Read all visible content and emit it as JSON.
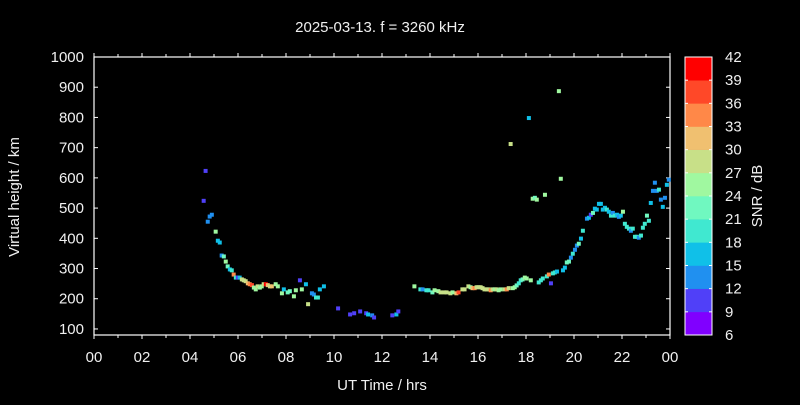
{
  "chart_data": {
    "type": "scatter",
    "title": "2025-03-13. f = 3260 kHz",
    "xlabel": "UT Time / hrs",
    "ylabel": "Virtual height / km",
    "xlim": [
      0,
      24
    ],
    "ylim": [
      80,
      1000
    ],
    "x_ticks": [
      "00",
      "02",
      "04",
      "06",
      "08",
      "10",
      "12",
      "14",
      "16",
      "18",
      "20",
      "22",
      "00"
    ],
    "y_ticks": [
      100,
      200,
      300,
      400,
      500,
      600,
      700,
      800,
      900,
      1000
    ],
    "grid": false,
    "colorbar": {
      "label": "SNR / dB",
      "range": [
        6,
        42
      ],
      "ticks": [
        42,
        39,
        36,
        33,
        30,
        27,
        24,
        21,
        18,
        15,
        12,
        9,
        6
      ],
      "colors": [
        "#8000ff",
        "#5040f8",
        "#2090f0",
        "#10c0e8",
        "#40e8d0",
        "#70f8c0",
        "#a0f8a0",
        "#c8e088",
        "#f0c070",
        "#ff8848",
        "#ff4828",
        "#ff0000"
      ]
    },
    "points": [
      [
        4.65,
        623,
        10.5
      ],
      [
        4.57,
        524,
        10.5
      ],
      [
        4.91,
        478,
        13.5
      ],
      [
        4.82,
        472,
        13.5
      ],
      [
        4.74,
        455,
        13.5
      ],
      [
        5.07,
        422,
        25.5
      ],
      [
        5.16,
        392,
        16.5
      ],
      [
        5.24,
        386,
        16.5
      ],
      [
        5.32,
        343,
        13.5
      ],
      [
        5.41,
        340,
        22.5
      ],
      [
        5.49,
        323,
        25.5
      ],
      [
        5.57,
        307,
        22.5
      ],
      [
        5.66,
        297,
        16.5
      ],
      [
        5.74,
        294,
        19.5
      ],
      [
        5.82,
        280,
        34.5
      ],
      [
        5.91,
        270,
        19.5
      ],
      [
        5.99,
        270,
        10.5
      ],
      [
        6.07,
        270,
        16.5
      ],
      [
        6.16,
        264,
        28.5
      ],
      [
        6.24,
        261,
        28.5
      ],
      [
        6.32,
        258,
        28.5
      ],
      [
        6.41,
        251,
        31.5
      ],
      [
        6.49,
        248,
        34.5
      ],
      [
        6.58,
        245,
        37.5
      ],
      [
        6.66,
        237,
        25.5
      ],
      [
        6.74,
        231,
        25.5
      ],
      [
        6.82,
        241,
        28.5
      ],
      [
        6.91,
        237,
        25.5
      ],
      [
        6.99,
        241,
        25.5
      ],
      [
        7.07,
        248,
        28.5
      ],
      [
        7.16,
        248,
        40.5
      ],
      [
        7.24,
        245,
        31.5
      ],
      [
        7.33,
        241,
        28.5
      ],
      [
        7.41,
        241,
        31.5
      ],
      [
        7.57,
        248,
        25.5
      ],
      [
        7.66,
        241,
        25.5
      ],
      [
        7.83,
        218,
        25.5
      ],
      [
        7.91,
        231,
        16.5
      ],
      [
        8.07,
        221,
        22.5
      ],
      [
        8.16,
        225,
        22.5
      ],
      [
        8.33,
        208,
        25.5
      ],
      [
        8.41,
        228,
        25.5
      ],
      [
        8.58,
        261,
        10.5
      ],
      [
        8.66,
        231,
        25.5
      ],
      [
        8.83,
        248,
        16.5
      ],
      [
        8.92,
        182,
        28.5
      ],
      [
        9.08,
        218,
        13.5
      ],
      [
        9.16,
        214,
        13.5
      ],
      [
        9.25,
        204,
        19.5
      ],
      [
        9.33,
        204,
        19.5
      ],
      [
        9.41,
        231,
        16.5
      ],
      [
        9.58,
        241,
        16.5
      ],
      [
        10.17,
        168,
        10.5
      ],
      [
        10.67,
        148,
        10.5
      ],
      [
        10.84,
        152,
        10.5
      ],
      [
        11.09,
        158,
        10.5
      ],
      [
        11.34,
        152,
        10.5
      ],
      [
        11.42,
        148,
        16.5
      ],
      [
        11.59,
        145,
        13.5
      ],
      [
        11.67,
        138,
        10.5
      ],
      [
        12.43,
        145,
        10.5
      ],
      [
        12.6,
        148,
        16.5
      ],
      [
        12.68,
        158,
        10.5
      ],
      [
        13.35,
        241,
        25.5
      ],
      [
        13.6,
        231,
        19.5
      ],
      [
        13.69,
        231,
        13.5
      ],
      [
        13.85,
        228,
        19.5
      ],
      [
        13.94,
        228,
        19.5
      ],
      [
        14.1,
        221,
        22.5
      ],
      [
        14.19,
        228,
        25.5
      ],
      [
        14.35,
        225,
        25.5
      ],
      [
        14.44,
        221,
        28.5
      ],
      [
        14.6,
        221,
        28.5
      ],
      [
        14.69,
        221,
        28.5
      ],
      [
        14.85,
        218,
        28.5
      ],
      [
        14.94,
        221,
        25.5
      ],
      [
        15.1,
        218,
        31.5
      ],
      [
        15.19,
        221,
        37.5
      ],
      [
        15.35,
        231,
        28.5
      ],
      [
        15.44,
        231,
        28.5
      ],
      [
        15.6,
        241,
        28.5
      ],
      [
        15.69,
        238,
        25.5
      ],
      [
        15.77,
        235,
        31.5
      ],
      [
        15.86,
        235,
        34.5
      ],
      [
        15.94,
        238,
        28.5
      ],
      [
        16.02,
        238,
        28.5
      ],
      [
        16.11,
        238,
        28.5
      ],
      [
        16.19,
        235,
        28.5
      ],
      [
        16.27,
        231,
        28.5
      ],
      [
        16.36,
        231,
        28.5
      ],
      [
        16.44,
        231,
        28.5
      ],
      [
        16.53,
        228,
        34.5
      ],
      [
        16.61,
        231,
        28.5
      ],
      [
        16.7,
        231,
        25.5
      ],
      [
        16.78,
        231,
        28.5
      ],
      [
        16.86,
        228,
        25.5
      ],
      [
        16.95,
        231,
        25.5
      ],
      [
        17.11,
        231,
        28.5
      ],
      [
        17.2,
        231,
        34.5
      ],
      [
        17.28,
        235,
        28.5
      ],
      [
        17.36,
        712,
        28.5
      ],
      [
        17.45,
        235,
        25.5
      ],
      [
        17.53,
        238,
        25.5
      ],
      [
        17.61,
        244,
        22.5
      ],
      [
        17.7,
        251,
        19.5
      ],
      [
        17.78,
        261,
        19.5
      ],
      [
        17.86,
        264,
        22.5
      ],
      [
        17.95,
        270,
        25.5
      ],
      [
        18.03,
        267,
        25.5
      ],
      [
        18.12,
        798,
        16.5
      ],
      [
        18.2,
        261,
        25.5
      ],
      [
        18.28,
        531,
        25.5
      ],
      [
        18.37,
        534,
        22.5
      ],
      [
        18.45,
        528,
        25.5
      ],
      [
        18.53,
        254,
        19.5
      ],
      [
        18.62,
        261,
        19.5
      ],
      [
        18.7,
        267,
        19.5
      ],
      [
        18.79,
        544,
        25.5
      ],
      [
        18.87,
        274,
        19.5
      ],
      [
        18.95,
        280,
        34.5
      ],
      [
        19.04,
        251,
        10.5
      ],
      [
        19.12,
        284,
        19.5
      ],
      [
        19.2,
        287,
        19.5
      ],
      [
        19.29,
        290,
        16.5
      ],
      [
        19.37,
        887,
        25.5
      ],
      [
        19.45,
        597,
        25.5
      ],
      [
        19.54,
        294,
        16.5
      ],
      [
        19.62,
        303,
        16.5
      ],
      [
        19.7,
        320,
        22.5
      ],
      [
        19.79,
        323,
        22.5
      ],
      [
        19.87,
        336,
        13.5
      ],
      [
        19.95,
        349,
        19.5
      ],
      [
        20.04,
        362,
        13.5
      ],
      [
        20.12,
        376,
        13.5
      ],
      [
        20.2,
        382,
        22.5
      ],
      [
        20.29,
        399,
        16.5
      ],
      [
        20.37,
        425,
        19.5
      ],
      [
        20.54,
        465,
        13.5
      ],
      [
        20.62,
        468,
        16.5
      ],
      [
        20.7,
        478,
        10.5
      ],
      [
        20.79,
        484,
        22.5
      ],
      [
        20.87,
        498,
        16.5
      ],
      [
        20.95,
        495,
        16.5
      ],
      [
        21.04,
        514,
        16.5
      ],
      [
        21.12,
        514,
        16.5
      ],
      [
        21.2,
        495,
        16.5
      ],
      [
        21.29,
        501,
        16.5
      ],
      [
        21.37,
        495,
        19.5
      ],
      [
        21.45,
        488,
        16.5
      ],
      [
        21.54,
        475,
        19.5
      ],
      [
        21.62,
        484,
        13.5
      ],
      [
        21.7,
        475,
        19.5
      ],
      [
        21.79,
        478,
        16.5
      ],
      [
        21.87,
        471,
        13.5
      ],
      [
        21.95,
        475,
        16.5
      ],
      [
        22.04,
        488,
        25.5
      ],
      [
        22.12,
        448,
        19.5
      ],
      [
        22.2,
        438,
        19.5
      ],
      [
        22.29,
        432,
        19.5
      ],
      [
        22.37,
        425,
        13.5
      ],
      [
        22.45,
        432,
        19.5
      ],
      [
        22.54,
        405,
        19.5
      ],
      [
        22.62,
        405,
        19.5
      ],
      [
        22.7,
        402,
        13.5
      ],
      [
        22.79,
        409,
        19.5
      ],
      [
        22.87,
        435,
        19.5
      ],
      [
        22.95,
        448,
        19.5
      ],
      [
        23.04,
        475,
        22.5
      ],
      [
        23.12,
        458,
        19.5
      ],
      [
        23.2,
        517,
        16.5
      ],
      [
        23.29,
        557,
        13.5
      ],
      [
        23.37,
        584,
        13.5
      ],
      [
        23.45,
        557,
        13.5
      ],
      [
        23.54,
        561,
        19.5
      ],
      [
        23.62,
        528,
        13.5
      ],
      [
        23.7,
        504,
        16.5
      ],
      [
        23.79,
        534,
        13.5
      ],
      [
        23.87,
        577,
        16.5
      ],
      [
        23.95,
        594,
        13.5
      ]
    ]
  }
}
